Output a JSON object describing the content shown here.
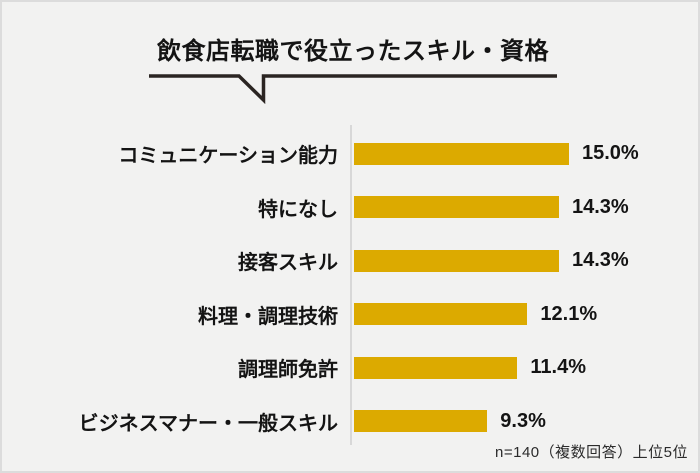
{
  "header": {
    "title": "飲食店転職で役立ったスキル・資格"
  },
  "footer": {
    "note": "n=140（複数回答）上位5位"
  },
  "colors": {
    "bar": "#dcaa00",
    "background": "#f2f2f1",
    "frame_border": "#dcdcdc",
    "axis_line": "#d8d8d8",
    "underline": "#2b2522",
    "text": "#141414"
  },
  "chart_data": {
    "type": "bar",
    "orientation": "horizontal",
    "title": "飲食店転職で役立ったスキル・資格",
    "categories": [
      "コミュニケーション能力",
      "特になし",
      "接客スキル",
      "料理・調理技術",
      "調理師免許",
      "ビジネスマナー・一般スキル"
    ],
    "values": [
      15.0,
      14.3,
      14.3,
      12.1,
      11.4,
      9.3
    ],
    "value_labels": [
      "15.0%",
      "14.3%",
      "14.3%",
      "12.1%",
      "11.4%",
      "9.3%"
    ],
    "unit": "%",
    "xlim": [
      0,
      15
    ],
    "grid": false,
    "legend": false,
    "note": "n=140（複数回答）上位5位"
  }
}
